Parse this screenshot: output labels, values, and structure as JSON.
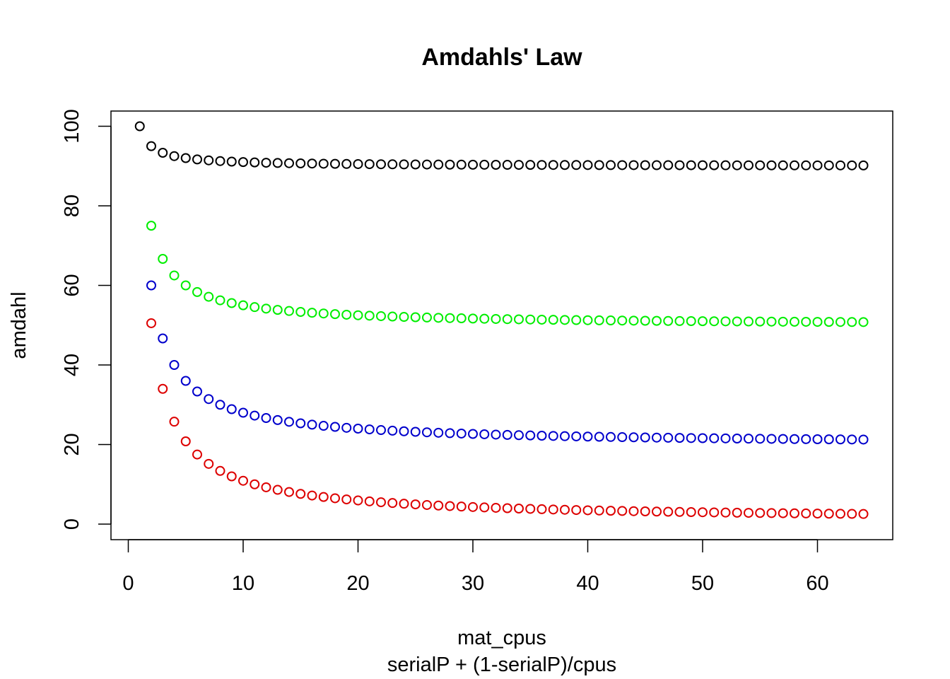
{
  "chart_data": {
    "type": "scatter",
    "title": "Amdahls' Law",
    "xlabel": "mat_cpus",
    "xlabel2": "serialP + (1-serialP)/cpus",
    "ylabel": "amdahl",
    "xlim": [
      0,
      65
    ],
    "ylim": [
      -4,
      104
    ],
    "x_ticks": [
      0,
      10,
      20,
      30,
      40,
      50,
      60
    ],
    "y_ticks": [
      0,
      20,
      40,
      60,
      80,
      100
    ],
    "grid": false,
    "legend": "none",
    "x_start": 1,
    "x_end": 64,
    "series": [
      {
        "color": "#000000",
        "serial_fraction": 0.9,
        "first_x": 1
      },
      {
        "color": "#00ee00",
        "serial_fraction": 0.5,
        "first_x": 2
      },
      {
        "color": "#0000cc",
        "serial_fraction": 0.2,
        "first_x": 2,
        "overrides": {
          "2": 60
        }
      },
      {
        "color": "#dd0000",
        "serial_fraction": 0.01,
        "first_x": 2
      }
    ]
  }
}
